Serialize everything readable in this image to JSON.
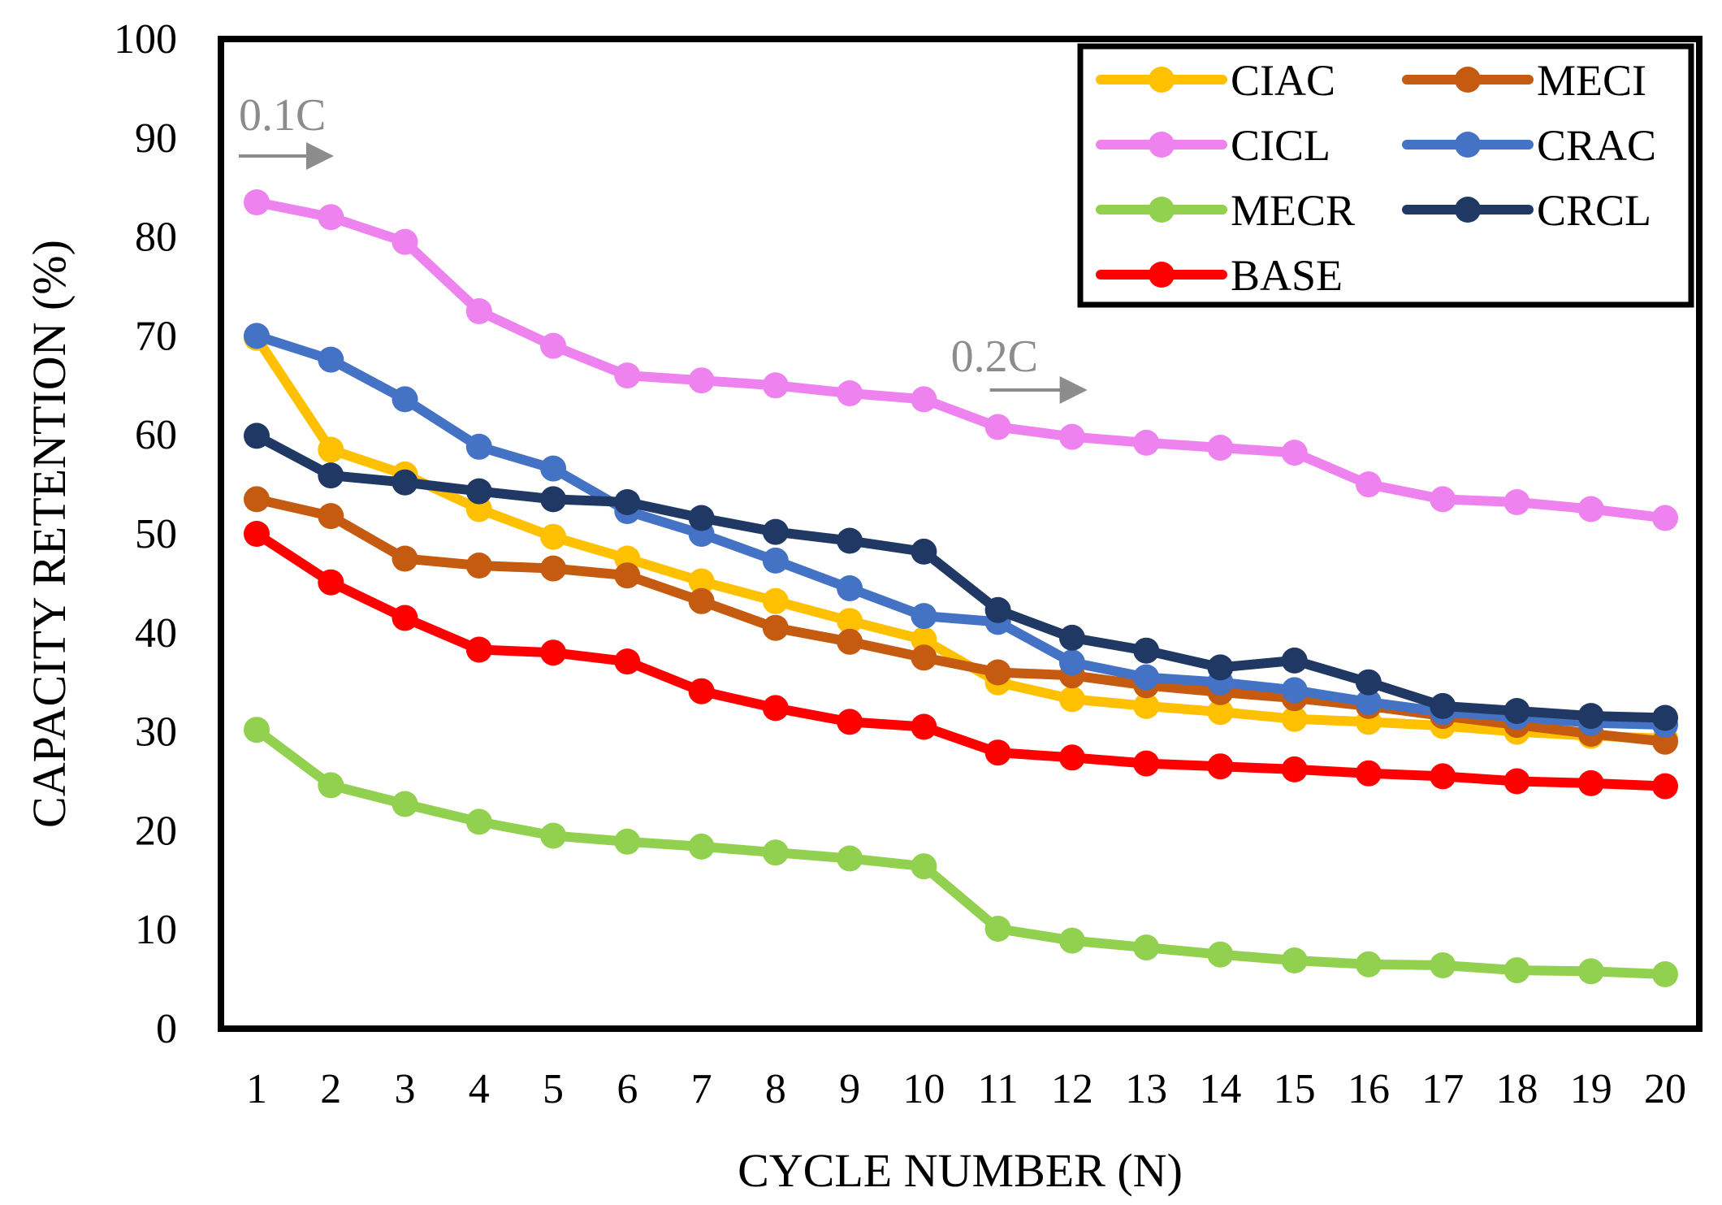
{
  "chart_data": {
    "type": "line",
    "title": "",
    "xlabel": "CYCLE  NUMBER  (N)",
    "ylabel": "CAPACITY  RETENTION  (%)",
    "x": [
      1,
      2,
      3,
      4,
      5,
      6,
      7,
      8,
      9,
      10,
      11,
      12,
      13,
      14,
      15,
      16,
      17,
      18,
      19,
      20
    ],
    "xlim": [
      1,
      20
    ],
    "ylim": [
      0,
      100
    ],
    "yticks": [
      0,
      10,
      20,
      30,
      40,
      50,
      60,
      70,
      80,
      90,
      100
    ],
    "grid": false,
    "legend_position": "top-right",
    "annotations": [
      {
        "text": "0.1C",
        "at_cycle": 1
      },
      {
        "text": "0.2C",
        "at_cycle": 11
      }
    ],
    "series": [
      {
        "name": "CIAC",
        "color": "#FFC000",
        "values": [
          69.8,
          58.5,
          56,
          52.5,
          49.7,
          47.5,
          45.2,
          43.2,
          41.2,
          39.3,
          35,
          33.3,
          32.6,
          32,
          31.3,
          31,
          30.6,
          30,
          29.6,
          29.3
        ]
      },
      {
        "name": "MECI",
        "color": "#C55A11",
        "values": [
          53.5,
          51.8,
          47.5,
          46.8,
          46.5,
          45.8,
          43.2,
          40.5,
          39.1,
          37.5,
          36,
          35.7,
          34.7,
          34,
          33.4,
          32.6,
          31.6,
          30.7,
          29.8,
          29
        ]
      },
      {
        "name": "CICL",
        "color": "#EE82EE",
        "values": [
          83.5,
          82,
          79.5,
          72.5,
          69,
          66,
          65.5,
          65,
          64.2,
          63.6,
          60.8,
          59.8,
          59.2,
          58.7,
          58.2,
          55,
          53.5,
          53.2,
          52.5,
          51.6
        ]
      },
      {
        "name": "CRAC",
        "color": "#4472C4",
        "values": [
          70,
          67.6,
          63.6,
          58.8,
          56.6,
          52.3,
          50,
          47.3,
          44.5,
          41.7,
          41.1,
          37,
          35.5,
          35,
          34.2,
          33,
          32,
          31.5,
          30.9,
          30.7
        ]
      },
      {
        "name": "MECR",
        "color": "#92D050",
        "values": [
          30.2,
          24.6,
          22.7,
          20.9,
          19.5,
          18.9,
          18.4,
          17.8,
          17.2,
          16.4,
          10.1,
          8.9,
          8.2,
          7.5,
          6.9,
          6.5,
          6.4,
          5.9,
          5.8,
          5.5
        ]
      },
      {
        "name": "CRCL",
        "color": "#203864",
        "values": [
          59.9,
          55.9,
          55.2,
          54.3,
          53.5,
          53.2,
          51.6,
          50.2,
          49.3,
          48.2,
          42.3,
          39.5,
          38.2,
          36.5,
          37.2,
          35,
          32.6,
          32.1,
          31.6,
          31.4
        ]
      },
      {
        "name": "BASE",
        "color": "#FF0000",
        "values": [
          50,
          45.1,
          41.5,
          38.3,
          38,
          37.1,
          34.1,
          32.4,
          31,
          30.5,
          27.9,
          27.4,
          26.8,
          26.5,
          26.2,
          25.8,
          25.5,
          25,
          24.8,
          24.5
        ]
      }
    ]
  }
}
